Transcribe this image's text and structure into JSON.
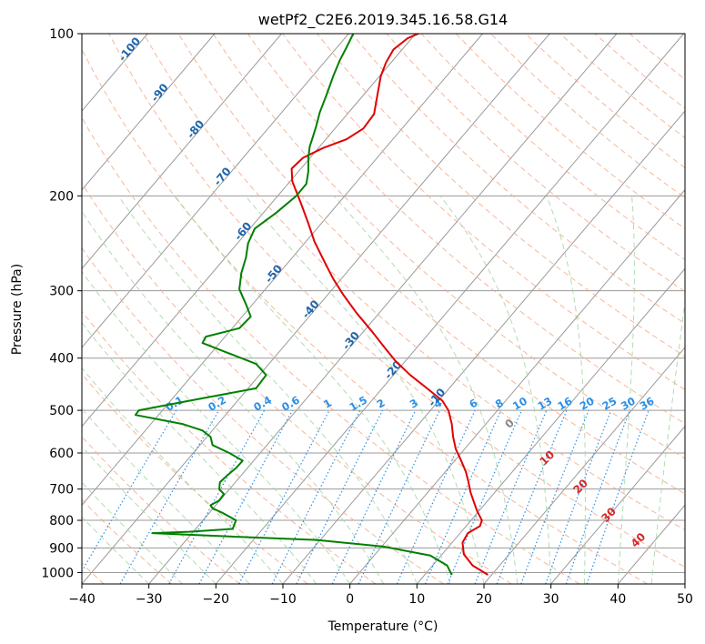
{
  "chart_data": {
    "type": "line",
    "title": "wetPf2_C2E6.2019.345.16.58.G14",
    "xlabel": "Temperature (°C)",
    "ylabel": "Pressure (hPa)",
    "xlim": [
      -40,
      50
    ],
    "ylim": [
      1050,
      100
    ],
    "y_scale": "log",
    "grid": true,
    "x_ticks": [
      -40,
      -30,
      -20,
      -10,
      0,
      10,
      20,
      30,
      40,
      50
    ],
    "y_ticks": [
      100,
      200,
      300,
      400,
      500,
      600,
      700,
      800,
      900,
      1000
    ],
    "x_tick_labels": [
      "−40",
      "−30",
      "−20",
      "−10",
      "0",
      "10",
      "20",
      "30",
      "40",
      "50"
    ],
    "y_tick_labels": [
      "100",
      "200",
      "300",
      "400",
      "500",
      "600",
      "700",
      "800",
      "900",
      "1000"
    ],
    "series": [
      {
        "color": "#e00000",
        "points": [
          [
            20.6,
            1010
          ],
          [
            18.3,
            970
          ],
          [
            17.0,
            925
          ],
          [
            16.8,
            880
          ],
          [
            17.6,
            845
          ],
          [
            19.4,
            820
          ],
          [
            19.7,
            800
          ],
          [
            19.0,
            770
          ],
          [
            18.5,
            740
          ],
          [
            18.0,
            710
          ],
          [
            17.7,
            680
          ],
          [
            17.3,
            650
          ],
          [
            16.6,
            620
          ],
          [
            15.8,
            590
          ],
          [
            15.4,
            560
          ],
          [
            15.2,
            530
          ],
          [
            14.7,
            500
          ],
          [
            13.8,
            480
          ],
          [
            11.5,
            455
          ],
          [
            9.0,
            430
          ],
          [
            6.8,
            405
          ],
          [
            5.0,
            380
          ],
          [
            3.3,
            357
          ],
          [
            1.0,
            330
          ],
          [
            -1.0,
            305
          ],
          [
            -2.5,
            285
          ],
          [
            -4.0,
            262
          ],
          [
            -5.3,
            243
          ],
          [
            -6.2,
            225
          ],
          [
            -7.4,
            205
          ],
          [
            -8.6,
            188
          ],
          [
            -8.7,
            178
          ],
          [
            -7.0,
            170
          ],
          [
            -4.0,
            163
          ],
          [
            -0.5,
            157
          ],
          [
            2.0,
            150
          ],
          [
            3.6,
            141
          ],
          [
            4.1,
            130
          ],
          [
            4.6,
            120
          ],
          [
            5.4,
            113
          ],
          [
            6.5,
            107
          ],
          [
            8.6,
            102
          ],
          [
            11.8,
            98
          ]
        ]
      },
      {
        "color": "#008000",
        "points": [
          [
            15.2,
            1010
          ],
          [
            14.5,
            970
          ],
          [
            12.0,
            930
          ],
          [
            5.0,
            895
          ],
          [
            -5.0,
            870
          ],
          [
            -20.0,
            855
          ],
          [
            -29.5,
            845
          ],
          [
            -24.0,
            840
          ],
          [
            -17.5,
            830
          ],
          [
            -17.0,
            800
          ],
          [
            -19.0,
            775
          ],
          [
            -20.5,
            760
          ],
          [
            -20.8,
            750
          ],
          [
            -19.5,
            735
          ],
          [
            -18.8,
            715
          ],
          [
            -19.5,
            700
          ],
          [
            -19.4,
            680
          ],
          [
            -18.3,
            660
          ],
          [
            -17.0,
            640
          ],
          [
            -16.0,
            620
          ],
          [
            -18.0,
            600
          ],
          [
            -20.5,
            580
          ],
          [
            -20.8,
            560
          ],
          [
            -22.0,
            545
          ],
          [
            -25.0,
            530
          ],
          [
            -32.0,
            510
          ],
          [
            -31.5,
            500
          ],
          [
            -24.0,
            480
          ],
          [
            -14.0,
            455
          ],
          [
            -12.5,
            430
          ],
          [
            -14.0,
            410
          ],
          [
            -18.5,
            390
          ],
          [
            -22.0,
            375
          ],
          [
            -21.5,
            365
          ],
          [
            -16.5,
            352
          ],
          [
            -14.8,
            335
          ],
          [
            -15.5,
            318
          ],
          [
            -16.5,
            298
          ],
          [
            -16.2,
            278
          ],
          [
            -15.5,
            260
          ],
          [
            -15.2,
            245
          ],
          [
            -14.2,
            230
          ],
          [
            -11.0,
            215
          ],
          [
            -8.0,
            200
          ],
          [
            -6.5,
            190
          ],
          [
            -6.2,
            180
          ],
          [
            -6.2,
            170
          ],
          [
            -6.0,
            162
          ],
          [
            -5.5,
            155
          ],
          [
            -5.0,
            148
          ],
          [
            -4.5,
            140
          ],
          [
            -3.5,
            130
          ],
          [
            -2.5,
            120
          ],
          [
            -1.5,
            112
          ],
          [
            -0.5,
            106
          ],
          [
            0.5,
            100
          ]
        ]
      }
    ],
    "dry_adiabat_labels": [
      "-100",
      "-90",
      "-80",
      "-70",
      "-60",
      "-50",
      "-40",
      "-30",
      "-20",
      "-10"
    ],
    "moist_adiabat_labels": [
      "0",
      "10",
      "20",
      "30",
      "40"
    ],
    "mixing_ratio_labels": [
      "0.1",
      "0.2",
      "0.4",
      "0.6",
      "1",
      "1.5",
      "2",
      "3",
      "4",
      "6",
      "8",
      "10",
      "13",
      "16",
      "20",
      "25",
      "30",
      "36"
    ],
    "colors": {
      "temperature": "#e00000",
      "dewpoint": "#008000",
      "dry_adiabat": "#f4a582",
      "moist_adiabat": "#9fd39f",
      "mixing_ratio": "#2b8fe6",
      "isotherm": "#9a9a9a",
      "dry_label": "#2166ac",
      "moist_label": "#d62728"
    }
  }
}
